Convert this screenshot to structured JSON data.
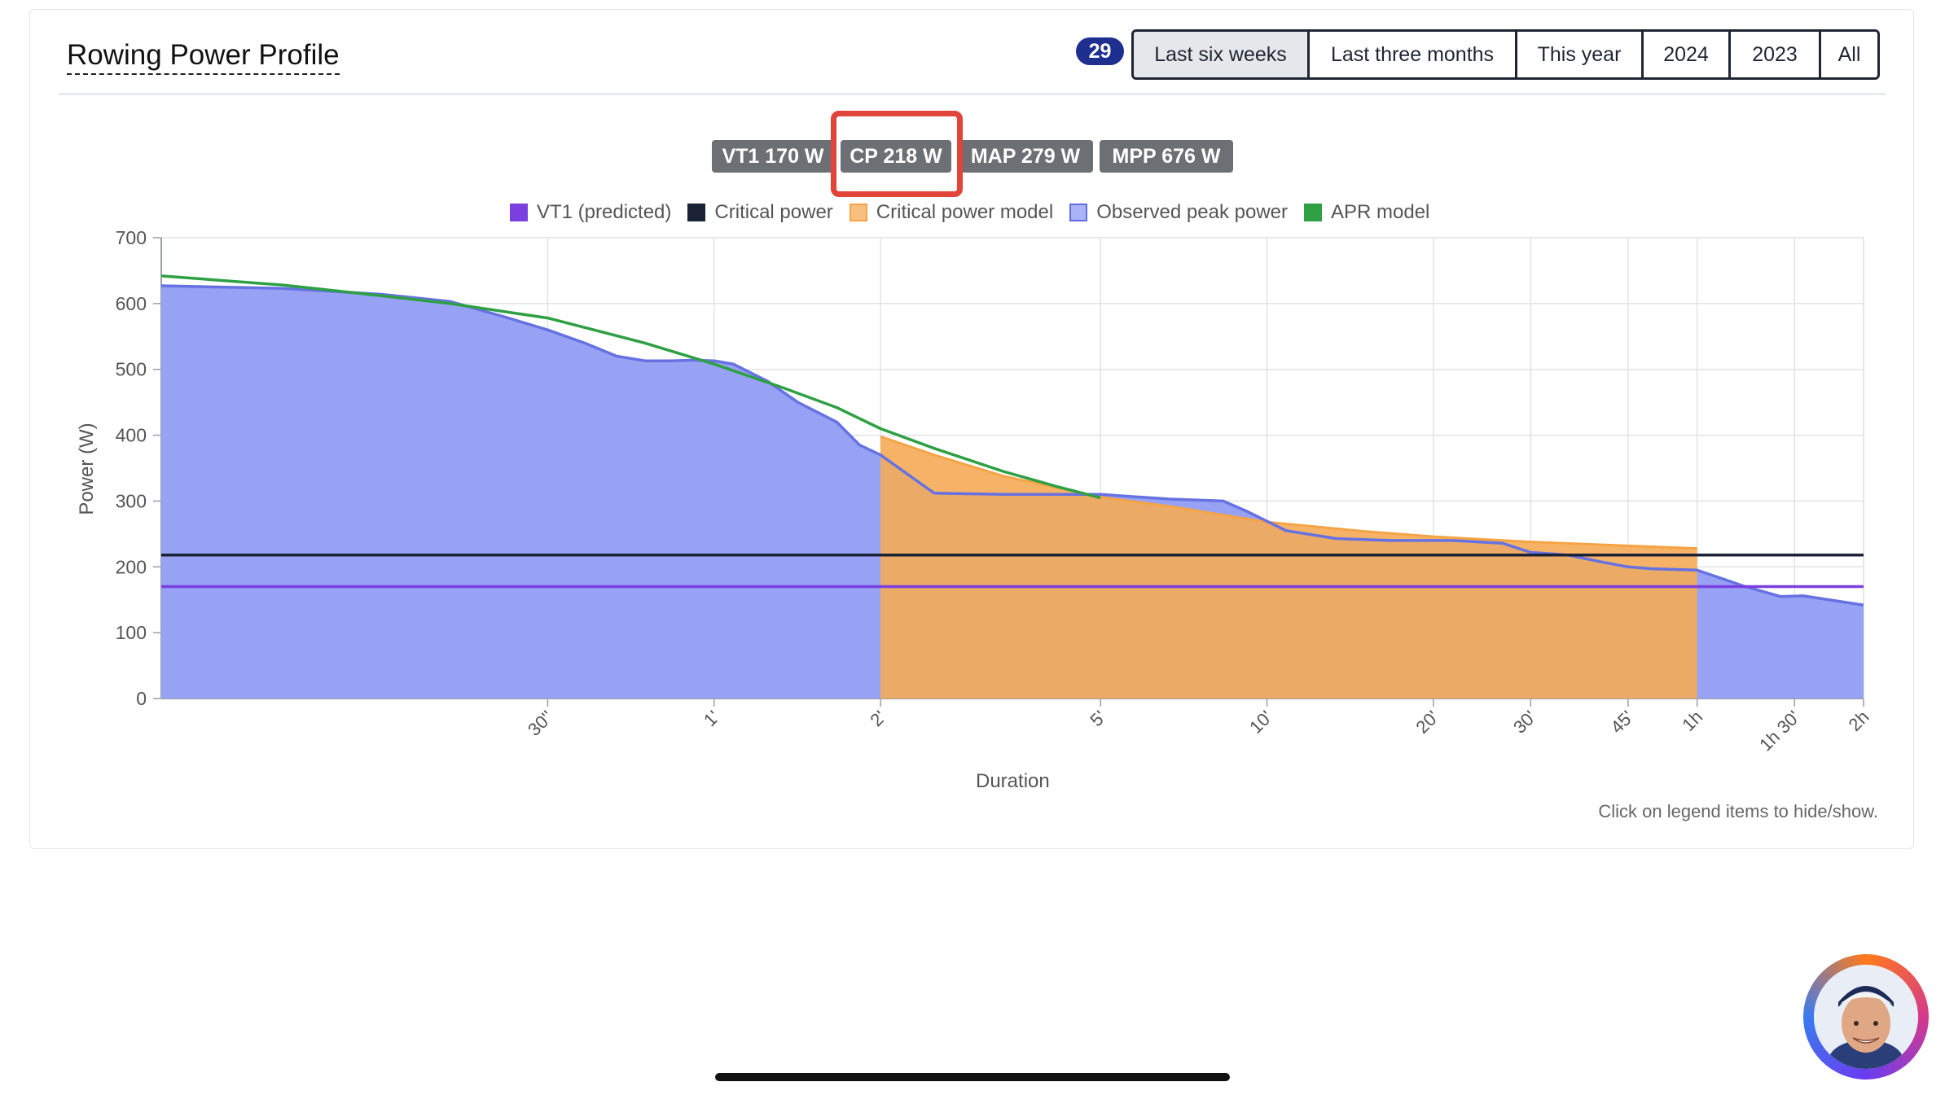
{
  "card": {
    "title": "Rowing Power Profile",
    "count_badge": "29",
    "ranges": [
      {
        "label": "Last six weeks",
        "active": true
      },
      {
        "label": "Last three months",
        "active": false
      },
      {
        "label": "This year",
        "active": false
      },
      {
        "label": "2024",
        "active": false
      },
      {
        "label": "2023",
        "active": false
      },
      {
        "label": "All",
        "active": false
      }
    ],
    "chips": [
      {
        "label": "VT1 170 W"
      },
      {
        "label": "CP 218 W"
      },
      {
        "label": "MAP 279 W"
      },
      {
        "label": "MPP 676 W"
      }
    ],
    "hint": "Click on legend items to hide/show."
  },
  "colors": {
    "vt1": "#7b3fe0",
    "critical_power": "#1c2236",
    "cp_model_fill": "#f5ab58",
    "observed_fill": "#98a2f5",
    "observed_line": "#6672e2",
    "apr_model": "#2ea043",
    "highlight": "#e0443a",
    "badge": "#1e2f8f"
  },
  "chart_data": {
    "type": "line",
    "xlabel": "Duration",
    "ylabel": "Power (W)",
    "x_scale": "log",
    "ylim": [
      0,
      700
    ],
    "y_ticks": [
      0,
      100,
      200,
      300,
      400,
      500,
      600,
      700
    ],
    "x_ticks": [
      {
        "label": "30''",
        "seconds": 30
      },
      {
        "label": "1'",
        "seconds": 60
      },
      {
        "label": "2'",
        "seconds": 120
      },
      {
        "label": "5'",
        "seconds": 300
      },
      {
        "label": "10'",
        "seconds": 600
      },
      {
        "label": "20'",
        "seconds": 1200
      },
      {
        "label": "30'",
        "seconds": 1800
      },
      {
        "label": "45'",
        "seconds": 2700
      },
      {
        "label": "1h",
        "seconds": 3600
      },
      {
        "label": "1h 30'",
        "seconds": 5400
      },
      {
        "label": "2h",
        "seconds": 7200
      }
    ],
    "legend_position": "top",
    "series": [
      {
        "name": "VT1 (predicted)",
        "kind": "line",
        "color_key": "vt1",
        "points": [
          [
            6,
            170
          ],
          [
            7200,
            170
          ]
        ]
      },
      {
        "name": "Critical power",
        "kind": "line",
        "color_key": "critical_power",
        "points": [
          [
            6,
            218
          ],
          [
            7200,
            218
          ]
        ]
      },
      {
        "name": "Critical power model",
        "kind": "area",
        "color_key": "cp_model_fill",
        "points": [
          [
            120,
            398
          ],
          [
            150,
            370
          ],
          [
            200,
            338
          ],
          [
            300,
            306
          ],
          [
            400,
            292
          ],
          [
            600,
            268
          ],
          [
            900,
            254
          ],
          [
            1200,
            246
          ],
          [
            1800,
            238
          ],
          [
            2700,
            232
          ],
          [
            3600,
            228
          ]
        ]
      },
      {
        "name": "Observed peak power",
        "kind": "area",
        "color_key": "observed_fill",
        "points": [
          [
            6,
            627
          ],
          [
            10,
            623
          ],
          [
            15,
            614
          ],
          [
            20,
            603
          ],
          [
            25,
            580
          ],
          [
            30,
            560
          ],
          [
            35,
            540
          ],
          [
            40,
            520
          ],
          [
            45,
            513
          ],
          [
            50,
            513
          ],
          [
            55,
            514
          ],
          [
            60,
            513
          ],
          [
            65,
            508
          ],
          [
            75,
            482
          ],
          [
            85,
            450
          ],
          [
            100,
            420
          ],
          [
            110,
            385
          ],
          [
            120,
            370
          ],
          [
            150,
            312
          ],
          [
            200,
            310
          ],
          [
            250,
            310
          ],
          [
            300,
            310
          ],
          [
            400,
            303
          ],
          [
            500,
            300
          ],
          [
            550,
            285
          ],
          [
            650,
            255
          ],
          [
            800,
            243
          ],
          [
            1000,
            240
          ],
          [
            1300,
            240
          ],
          [
            1600,
            236
          ],
          [
            1800,
            222
          ],
          [
            2100,
            218
          ],
          [
            2400,
            208
          ],
          [
            2700,
            200
          ],
          [
            3000,
            197
          ],
          [
            3600,
            195
          ],
          [
            4400,
            170
          ],
          [
            5100,
            155
          ],
          [
            5600,
            156
          ],
          [
            7200,
            142
          ]
        ]
      },
      {
        "name": "APR model",
        "kind": "line",
        "color_key": "apr_model",
        "points": [
          [
            6,
            642
          ],
          [
            10,
            628
          ],
          [
            15,
            612
          ],
          [
            20,
            600
          ],
          [
            30,
            578
          ],
          [
            45,
            540
          ],
          [
            60,
            508
          ],
          [
            80,
            472
          ],
          [
            100,
            442
          ],
          [
            120,
            410
          ],
          [
            150,
            380
          ],
          [
            200,
            345
          ],
          [
            250,
            322
          ],
          [
            300,
            305
          ]
        ]
      }
    ]
  }
}
